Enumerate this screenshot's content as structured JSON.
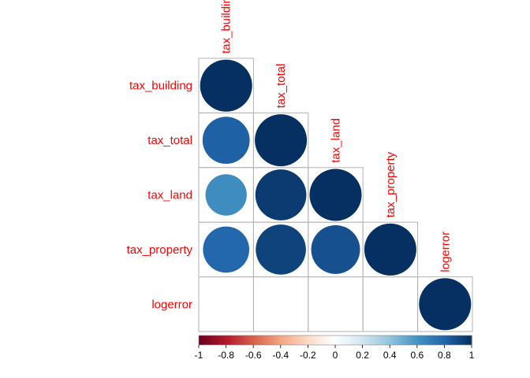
{
  "chart_data": {
    "type": "heatmap",
    "style": "corrplot-circle-lower",
    "variables": [
      "tax_building",
      "tax_total",
      "tax_land",
      "tax_property",
      "logerror"
    ],
    "matrix": [
      [
        1.0,
        null,
        null,
        null,
        null
      ],
      [
        0.82,
        1.0,
        null,
        null,
        null
      ],
      [
        0.63,
        0.96,
        1.0,
        null,
        null
      ],
      [
        0.79,
        0.93,
        0.88,
        1.0,
        null
      ],
      [
        0.01,
        0.01,
        0.0,
        0.0,
        1.0
      ]
    ],
    "colorbar": {
      "range": [
        -1,
        1
      ],
      "ticks": [
        "-1",
        "-0.8",
        "-0.6",
        "-0.4",
        "-0.2",
        "0",
        "0.2",
        "0.4",
        "0.6",
        "0.8",
        "1"
      ],
      "colors": [
        "#67001F",
        "#B2182B",
        "#D6604D",
        "#F4A582",
        "#FDDBC7",
        "#FFFFFF",
        "#D1E5F0",
        "#92C5DE",
        "#4393C3",
        "#2166AC",
        "#053061"
      ]
    },
    "label_color": "#ff0000"
  }
}
